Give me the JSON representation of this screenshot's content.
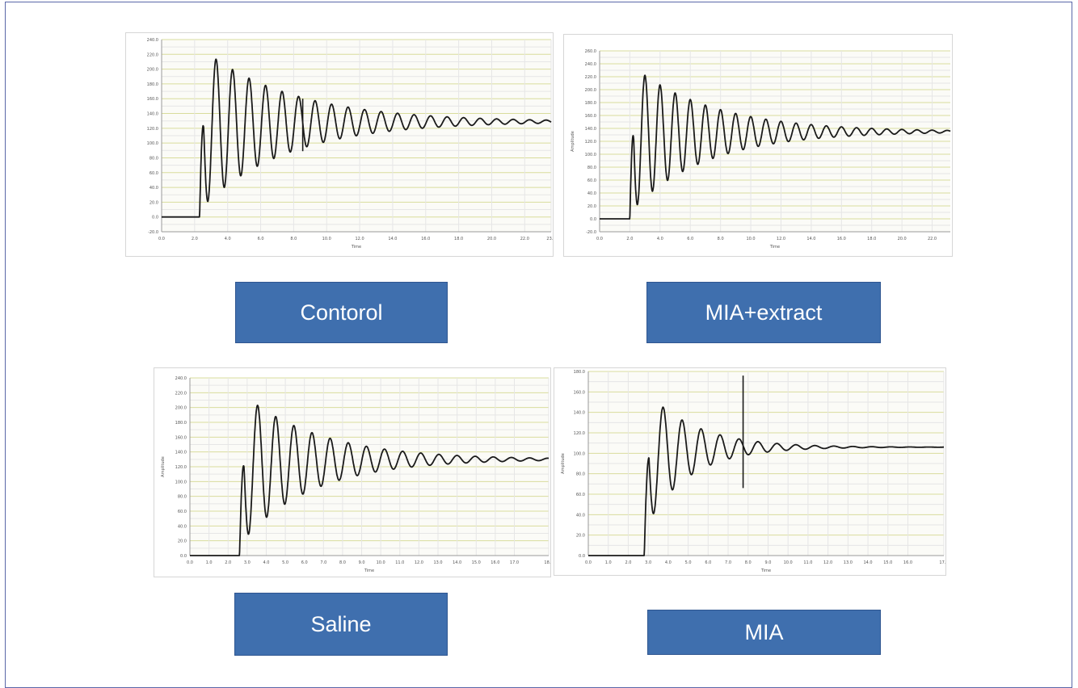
{
  "chart_data": [
    {
      "type": "line",
      "label": "Contorol",
      "xlabel": "Time",
      "ylabel": "",
      "xlim": [
        0,
        23.6
      ],
      "ylim": [
        -20,
        240
      ],
      "x_ticks": [
        "0.0",
        "2.0",
        "4.0",
        "6.0",
        "8.0",
        "10.0",
        "12.0",
        "14.0",
        "16.0",
        "18.0",
        "20.0",
        "22.0",
        "23.6"
      ],
      "y_ticks": [
        "-20.0",
        "0.0",
        "20.0",
        "40.0",
        "60.0",
        "80.0",
        "100.0",
        "120.0",
        "140.0",
        "160.0",
        "180.0",
        "200.0",
        "220.0",
        "240.0"
      ],
      "grid": true,
      "signal": {
        "onset": 2.3,
        "baseline": 0,
        "steady": 129,
        "first_peak": 230,
        "first_trough": 10,
        "period": 1.0,
        "settle": 21.5,
        "spike_x": 8.55,
        "spike_y": 160
      }
    },
    {
      "type": "line",
      "label": "MIA+extract",
      "xlabel": "Time",
      "ylabel": "Amplitude",
      "xlim": [
        0,
        23.2
      ],
      "ylim": [
        -20,
        260
      ],
      "x_ticks": [
        "0.0",
        "2.0",
        "4.0",
        "6.0",
        "8.0",
        "10.0",
        "12.0",
        "14.0",
        "16.0",
        "18.0",
        "20.0",
        "22.0"
      ],
      "y_ticks": [
        "-20.0",
        "0.0",
        "20.0",
        "40.0",
        "60.0",
        "80.0",
        "100.0",
        "120.0",
        "140.0",
        "160.0",
        "180.0",
        "200.0",
        "220.0",
        "240.0",
        "260.0"
      ],
      "grid": true,
      "signal": {
        "onset": 2.0,
        "baseline": 0,
        "steady": 135,
        "first_peak": 240,
        "first_trough": 10,
        "period": 1.0,
        "settle": 20.5
      }
    },
    {
      "type": "line",
      "label": "Saline",
      "xlabel": "Time",
      "ylabel": "Amplitude",
      "xlim": [
        0,
        18.8
      ],
      "ylim": [
        0,
        240
      ],
      "x_ticks": [
        "0.0",
        "1.0",
        "2.0",
        "3.0",
        "4.0",
        "5.0",
        "6.0",
        "7.0",
        "8.0",
        "9.0",
        "10.0",
        "11.0",
        "12.0",
        "13.0",
        "14.0",
        "15.0",
        "16.0",
        "17.0",
        "18.8"
      ],
      "y_ticks": [
        "0.0",
        "20.0",
        "40.0",
        "60.0",
        "80.0",
        "100.0",
        "120.0",
        "140.0",
        "160.0",
        "180.0",
        "200.0",
        "220.0",
        "240.0"
      ],
      "grid": true,
      "signal": {
        "onset": 2.6,
        "baseline": 0,
        "steady": 130,
        "first_peak": 222,
        "first_trough": 15,
        "period": 0.95,
        "settle": 16.5
      }
    },
    {
      "type": "line",
      "label": "MIA",
      "xlabel": "Time",
      "ylabel": "Amplitude",
      "xlim": [
        0,
        17.8
      ],
      "ylim": [
        0,
        180
      ],
      "x_ticks": [
        "0.0",
        "1.0",
        "2.0",
        "3.0",
        "4.0",
        "5.0",
        "6.0",
        "7.0",
        "8.0",
        "9.0",
        "10.0",
        "11.0",
        "12.0",
        "13.0",
        "14.0",
        "15.0",
        "16.0",
        "17.8"
      ],
      "y_ticks": [
        "0.0",
        "20.0",
        "40.0",
        "60.0",
        "80.0",
        "100.0",
        "120.0",
        "140.0",
        "160.0",
        "180.0"
      ],
      "grid": true,
      "signal": {
        "onset": 2.8,
        "baseline": 0,
        "steady": 106,
        "first_peak": 163,
        "first_trough": 25,
        "period": 0.95,
        "settle": 11.0,
        "spike_x": 7.75,
        "spike_y": 176
      }
    }
  ],
  "labels": {
    "contorol": "Contorol",
    "mia_extract": "MIA+extract",
    "saline": "Saline",
    "mia": "MIA"
  },
  "colors": {
    "frame": "#5a67a8",
    "label_bg": "#3f6fae",
    "label_text": "#ffffff",
    "grid_minor": "#d9dc9c",
    "grid_major": "#e6e6e6",
    "trace": "#1a1a1a"
  }
}
